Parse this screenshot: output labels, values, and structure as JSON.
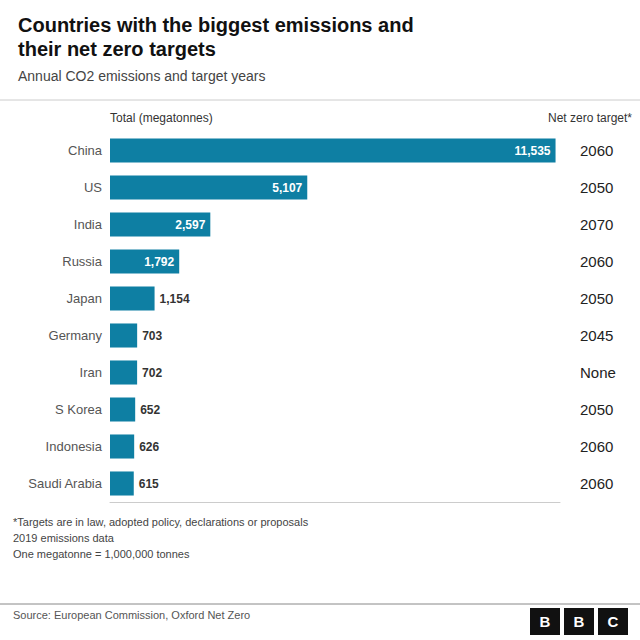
{
  "chart_data": {
    "type": "bar",
    "orientation": "horizontal",
    "title": "Countries with the biggest emissions and\ntheir net zero targets",
    "subtitle": "Annual CO2 emissions and target years",
    "categories": [
      "China",
      "US",
      "India",
      "Russia",
      "Japan",
      "Germany",
      "Iran",
      "S Korea",
      "Indonesia",
      "Saudi Arabia"
    ],
    "values": [
      11535,
      5107,
      2597,
      1792,
      1154,
      703,
      702,
      652,
      626,
      615
    ],
    "value_labels": [
      "11,535",
      "5,107",
      "2,597",
      "1,792",
      "1,154",
      "703",
      "702",
      "652",
      "626",
      "615"
    ],
    "color": "#0e7fa3",
    "data_labels": true,
    "xlim": [
      0,
      11650.35
    ],
    "tick_labels": "y",
    "grid": false,
    "annotations": {
      "value_header": "Total (megatonnes)",
      "target_header": "Net zero target*",
      "targets": [
        "2060",
        "2050",
        "2070",
        "2060",
        "2050",
        "2045",
        "None",
        "2050",
        "2060",
        "2060"
      ]
    },
    "footnote": "*Targets are in law, adopted policy, declarations or proposals\n2019 emissions data\nOne megatonne = 1,000,000 tonnes",
    "source": "Source: European Commission, Oxford Net Zero",
    "logo": "BBC"
  }
}
